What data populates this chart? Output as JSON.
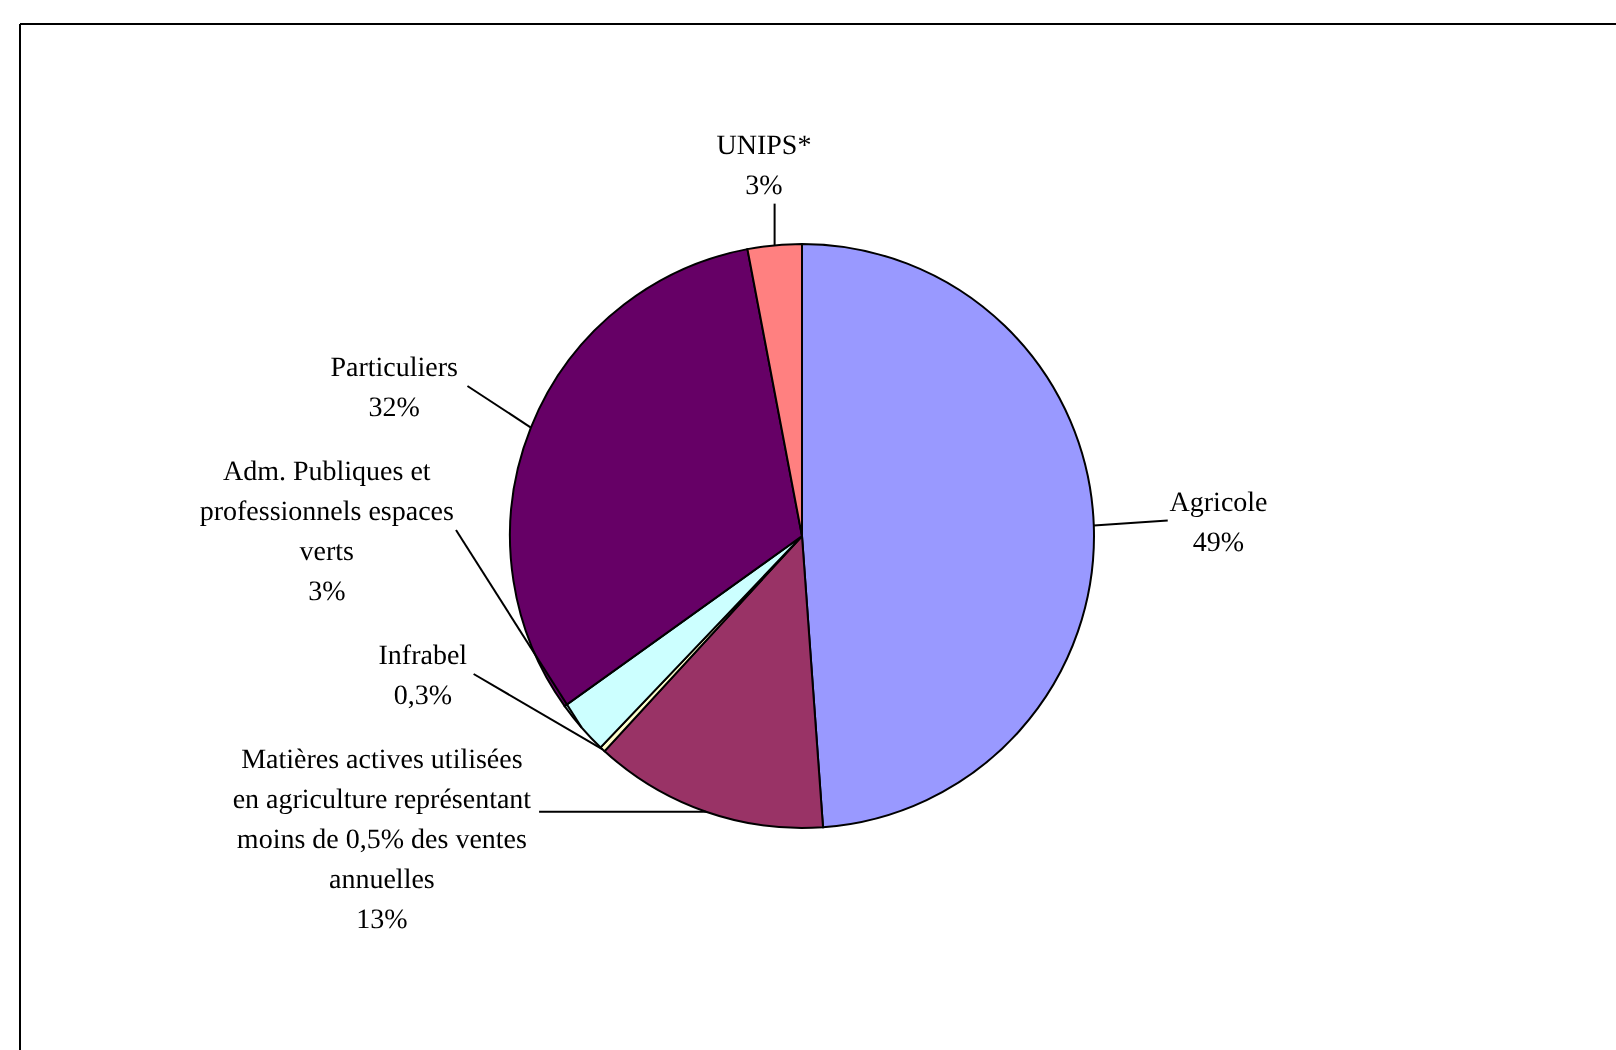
{
  "chart_data": {
    "type": "pie",
    "categories": [
      "Agricole",
      "Matières actives utilisées en agriculture représentant moins de 0,5% des ventes annuelles",
      "Infrabel",
      "Adm. Publiques et professionnels espaces verts",
      "Particuliers",
      "UNIPS*"
    ],
    "values": [
      49,
      13,
      0.3,
      3,
      32,
      3
    ],
    "colors": [
      "#9999ff",
      "#993366",
      "#ffffcc",
      "#ccffff",
      "#660066",
      "#ff8080"
    ],
    "value_labels": [
      "49%",
      "13%",
      "0,3%",
      "3%",
      "32%",
      "3%"
    ]
  }
}
